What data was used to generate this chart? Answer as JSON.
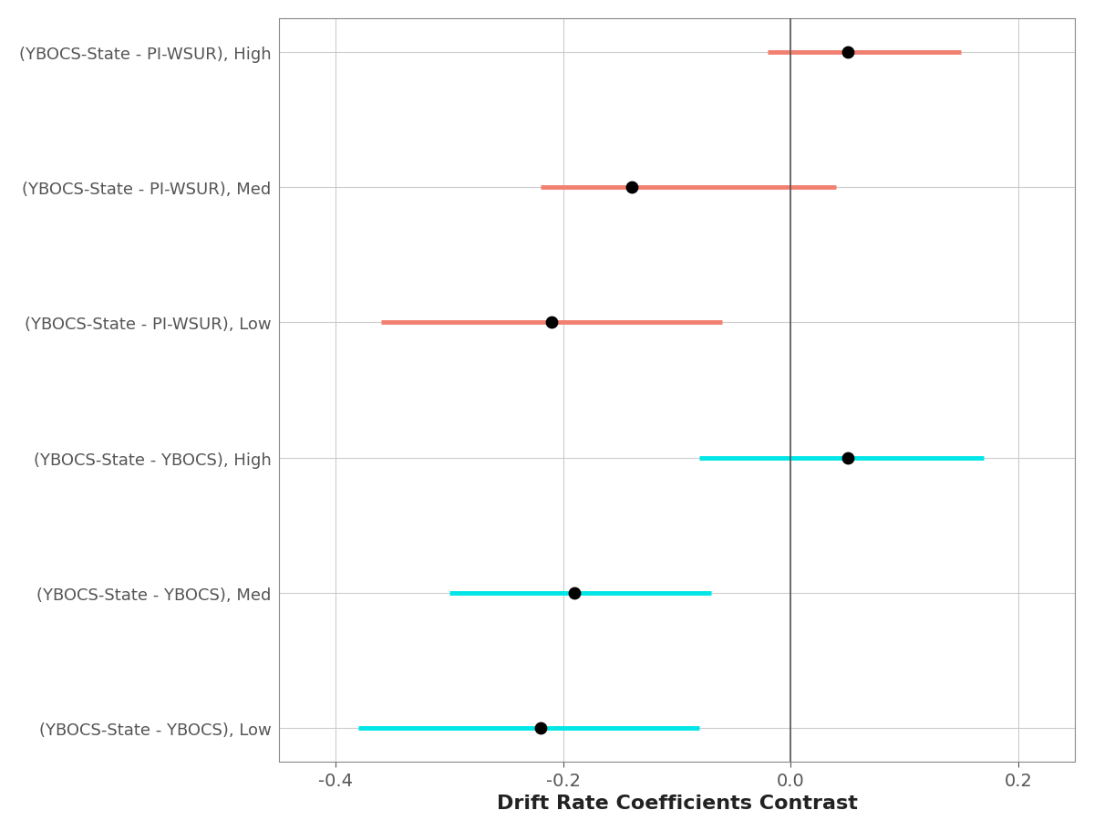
{
  "labels": [
    "(YBOCS-State - PI-WSUR), High",
    "(YBOCS-State - PI-WSUR), Med",
    "(YBOCS-State - PI-WSUR), Low",
    "(YBOCS-State - YBOCS), High",
    "(YBOCS-State - YBOCS), Med",
    "(YBOCS-State - YBOCS), Low"
  ],
  "estimates": [
    0.05,
    -0.14,
    -0.21,
    0.05,
    -0.19,
    -0.22
  ],
  "ci_low": [
    -0.02,
    -0.22,
    -0.36,
    -0.08,
    -0.3,
    -0.38
  ],
  "ci_high": [
    0.15,
    0.04,
    -0.06,
    0.17,
    -0.07,
    -0.08
  ],
  "colors": [
    "#F28070",
    "#F28070",
    "#F28070",
    "#00E5E5",
    "#00E5E5",
    "#00E5E5"
  ],
  "xlabel": "Drift Rate Coefficients Contrast",
  "xlim": [
    -0.45,
    0.25
  ],
  "xticks": [
    -0.4,
    -0.2,
    0.0,
    0.2
  ],
  "xticklabels": [
    "-0.4",
    "-0.2",
    "0.0",
    "0.2"
  ],
  "vline_x": 0.0,
  "background_color": "#FFFFFF",
  "grid_color": "#CCCCCC",
  "line_width": 3.5,
  "dot_size": 80,
  "dot_color": "#000000",
  "xlabel_fontsize": 16,
  "tick_fontsize": 14,
  "ylabel_fontsize": 13
}
